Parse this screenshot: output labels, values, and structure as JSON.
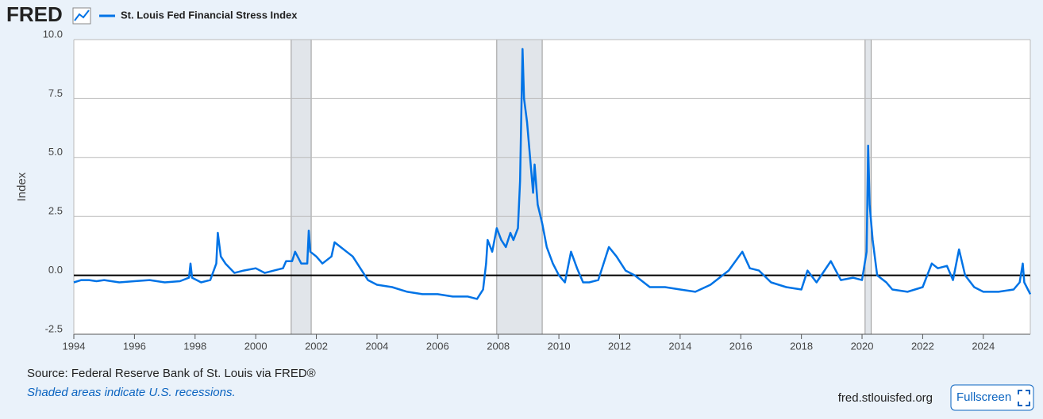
{
  "header": {
    "logo": "FRED",
    "legend_entry": "St. Louis Fed Financial Stress Index"
  },
  "chart_data": {
    "type": "line",
    "ylabel": "Index",
    "xlim": [
      1994,
      2025.55
    ],
    "xticks": [
      1994,
      1996,
      1998,
      2000,
      2002,
      2004,
      2006,
      2008,
      2010,
      2012,
      2014,
      2016,
      2018,
      2020,
      2022,
      2024
    ],
    "ylim": [
      -2.5,
      10
    ],
    "yticks": [
      -2.5,
      {
        "value": 0,
        "label": "0.0"
      },
      2.5,
      {
        "value": 5,
        "label": "5.0"
      },
      7.5,
      {
        "value": 10,
        "label": "10.0"
      }
    ],
    "grid": true,
    "reference_line": 0,
    "recessions": [
      [
        2001.17,
        2001.83
      ],
      [
        2007.95,
        2009.45
      ],
      [
        2020.1,
        2020.3
      ]
    ],
    "recession_color": "#e1e5ea",
    "x": [
      1994.0,
      1994.25,
      1994.5,
      1994.75,
      1995,
      1995.5,
      1996,
      1996.5,
      1997,
      1997.5,
      1997.8,
      1997.85,
      1997.9,
      1998.2,
      1998.5,
      1998.7,
      1998.75,
      1998.85,
      1999,
      1999.3,
      1999.6,
      2000,
      2000.3,
      2000.6,
      2000.9,
      2001.0,
      2001.2,
      2001.3,
      2001.5,
      2001.7,
      2001.75,
      2001.8,
      2002,
      2002.2,
      2002.5,
      2002.6,
      2002.8,
      2003.0,
      2003.2,
      2003.5,
      2003.7,
      2004,
      2004.5,
      2005,
      2005.5,
      2006,
      2006.5,
      2007,
      2007.3,
      2007.5,
      2007.6,
      2007.65,
      2007.8,
      2007.95,
      2008.1,
      2008.25,
      2008.4,
      2008.5,
      2008.65,
      2008.72,
      2008.8,
      2008.85,
      2008.95,
      2009.05,
      2009.15,
      2009.2,
      2009.3,
      2009.45,
      2009.6,
      2009.8,
      2010,
      2010.2,
      2010.4,
      2010.6,
      2010.8,
      2011,
      2011.3,
      2011.65,
      2011.9,
      2012.2,
      2012.5,
      2012.8,
      2013,
      2013.5,
      2014,
      2014.5,
      2015,
      2015.6,
      2016.05,
      2016.3,
      2016.6,
      2017,
      2017.5,
      2018,
      2018.2,
      2018.5,
      2018.97,
      2019.3,
      2019.7,
      2020.0,
      2020.15,
      2020.2,
      2020.25,
      2020.35,
      2020.5,
      2020.8,
      2021,
      2021.5,
      2022,
      2022.3,
      2022.5,
      2022.8,
      2023,
      2023.2,
      2023.4,
      2023.7,
      2024,
      2024.5,
      2025,
      2025.2,
      2025.3,
      2025.35,
      2025.55
    ],
    "series": [
      {
        "name": "St. Louis Fed Financial Stress Index",
        "color": "#0073e6",
        "values": [
          -0.3,
          -0.2,
          -0.2,
          -0.25,
          -0.2,
          -0.3,
          -0.25,
          -0.2,
          -0.3,
          -0.25,
          -0.1,
          0.5,
          -0.1,
          -0.3,
          -0.2,
          0.5,
          1.8,
          0.8,
          0.5,
          0.1,
          0.2,
          0.3,
          0.1,
          0.2,
          0.3,
          0.6,
          0.6,
          1.0,
          0.5,
          0.5,
          1.9,
          1.0,
          0.8,
          0.5,
          0.8,
          1.4,
          1.2,
          1.0,
          0.8,
          0.2,
          -0.2,
          -0.4,
          -0.5,
          -0.7,
          -0.8,
          -0.8,
          -0.9,
          -0.9,
          -1.0,
          -0.6,
          0.5,
          1.5,
          1.0,
          2.0,
          1.5,
          1.2,
          1.8,
          1.5,
          2.0,
          4.0,
          9.6,
          7.5,
          6.5,
          5.0,
          3.5,
          4.7,
          3.0,
          2.2,
          1.2,
          0.5,
          0.0,
          -0.3,
          1.0,
          0.3,
          -0.3,
          -0.3,
          -0.2,
          1.2,
          0.8,
          0.2,
          0.0,
          -0.3,
          -0.5,
          -0.5,
          -0.6,
          -0.7,
          -0.4,
          0.2,
          1.0,
          0.3,
          0.2,
          -0.3,
          -0.5,
          -0.6,
          0.2,
          -0.3,
          0.6,
          -0.2,
          -0.1,
          -0.2,
          1.0,
          5.5,
          3.0,
          1.5,
          0.0,
          -0.3,
          -0.6,
          -0.7,
          -0.5,
          0.5,
          0.3,
          0.4,
          -0.2,
          1.1,
          0.0,
          -0.5,
          -0.7,
          -0.7,
          -0.6,
          -0.3,
          0.5,
          -0.3,
          -0.8
        ]
      }
    ]
  },
  "footer": {
    "source": "Source: Federal Reserve Bank of St. Louis via FRED®",
    "note": "Shaded areas indicate U.S. recessions.",
    "site": "fred.stlouisfed.org",
    "button": "Fullscreen"
  }
}
